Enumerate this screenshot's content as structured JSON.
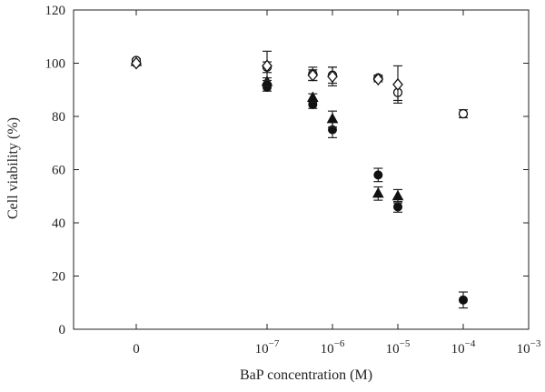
{
  "chart_data": {
    "type": "scatter",
    "xlabel": "BaP concentration (M)",
    "ylabel": "Cell viability (%)",
    "xscale": "log with zero control",
    "ylim": [
      0,
      120
    ],
    "yticks": [
      "0",
      "20",
      "40",
      "60",
      "80",
      "100",
      "120"
    ],
    "xticks": [
      {
        "label": "0",
        "value": 0
      },
      {
        "base": "10",
        "exp": "−7",
        "value": 1e-07
      },
      {
        "base": "10",
        "exp": "−6",
        "value": 1e-06
      },
      {
        "base": "10",
        "exp": "−5",
        "value": 1e-05
      },
      {
        "base": "10",
        "exp": "−4",
        "value": 0.0001
      },
      {
        "base": "10",
        "exp": "−3",
        "value": 0.001
      }
    ],
    "grid": false,
    "legend": "none",
    "series": [
      {
        "marker": "filled-circle",
        "points": [
          {
            "x": 0,
            "y": 100,
            "err": 0.8
          },
          {
            "x": 1e-07,
            "y": 91,
            "err": 1.5
          },
          {
            "x": 5e-07,
            "y": 84.5,
            "err": 1.5
          },
          {
            "x": 1e-06,
            "y": 75,
            "err": 3
          },
          {
            "x": 5e-06,
            "y": 58,
            "err": 2.5
          },
          {
            "x": 1e-05,
            "y": 46,
            "err": 2
          },
          {
            "x": 0.0001,
            "y": 11,
            "err": 3
          }
        ]
      },
      {
        "marker": "filled-triangle",
        "points": [
          {
            "x": 0,
            "y": 100.5,
            "err": 0.5
          },
          {
            "x": 1e-07,
            "y": 93,
            "err": 1.5
          },
          {
            "x": 5e-07,
            "y": 87,
            "err": 1.5
          },
          {
            "x": 1e-06,
            "y": 79,
            "err": 3
          },
          {
            "x": 5e-06,
            "y": 51,
            "err": 2.5
          },
          {
            "x": 1e-05,
            "y": 50,
            "err": 2.5
          }
        ]
      },
      {
        "marker": "open-circle",
        "points": [
          {
            "x": 0,
            "y": 101,
            "err": 0.7
          },
          {
            "x": 1e-07,
            "y": 98.5,
            "err": 2
          },
          {
            "x": 5e-07,
            "y": 96,
            "err": 2.5
          },
          {
            "x": 1e-06,
            "y": 95.5,
            "err": 3
          },
          {
            "x": 5e-06,
            "y": 94.5,
            "err": 1
          },
          {
            "x": 1e-05,
            "y": 89,
            "err": 3
          },
          {
            "x": 0.0001,
            "y": 81,
            "err": 1.5
          }
        ]
      },
      {
        "marker": "open-diamond",
        "points": [
          {
            "x": 0,
            "y": 100,
            "err": 0.5
          },
          {
            "x": 1e-07,
            "y": 99,
            "err": 5.5
          },
          {
            "x": 5e-07,
            "y": 95.5,
            "err": 2
          },
          {
            "x": 1e-06,
            "y": 95,
            "err": 3.5
          },
          {
            "x": 5e-06,
            "y": 94,
            "err": 1
          },
          {
            "x": 1e-05,
            "y": 92,
            "err": 7
          }
        ]
      }
    ]
  }
}
